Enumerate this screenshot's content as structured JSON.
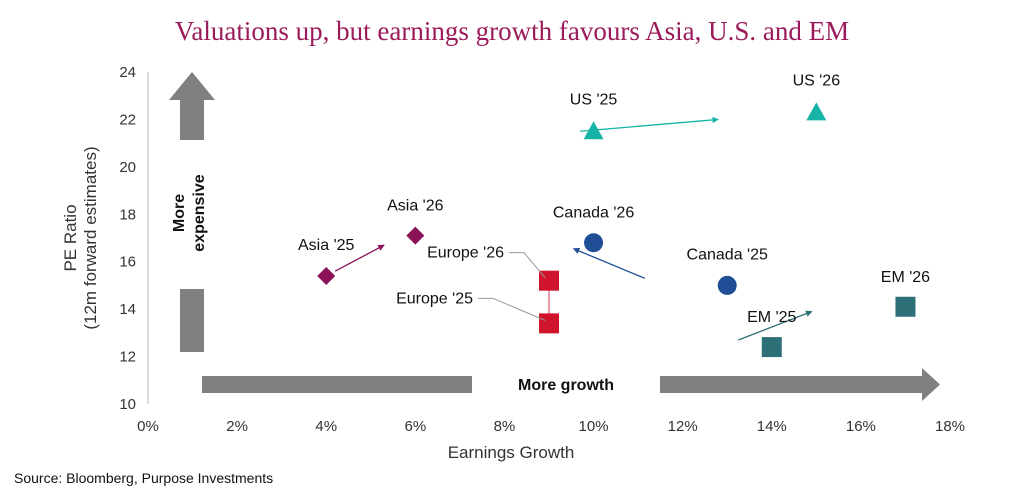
{
  "chart_data": {
    "type": "scatter",
    "title": "Valuations up, but earnings growth favours Asia, U.S. and EM",
    "xlabel": "Earnings Growth",
    "ylabel": [
      "PE Ratio",
      "(12m forward estimates)"
    ],
    "xlim": [
      0,
      18
    ],
    "ylim": [
      10,
      24
    ],
    "xticks": [
      "0%",
      "2%",
      "4%",
      "6%",
      "8%",
      "10%",
      "12%",
      "14%",
      "16%",
      "18%"
    ],
    "xtick_values": [
      0,
      2,
      4,
      6,
      8,
      10,
      12,
      14,
      16,
      18
    ],
    "yticks": [
      "10",
      "12",
      "14",
      "16",
      "18",
      "20",
      "22",
      "24"
    ],
    "ytick_values": [
      10,
      12,
      14,
      16,
      18,
      20,
      22,
      24
    ],
    "grid": false,
    "series": [
      {
        "name": "US",
        "color": "#17b3a6",
        "marker": "triangle",
        "points": [
          {
            "label": "US '25",
            "x": 10,
            "y": 21.5
          },
          {
            "label": "US '26",
            "x": 15,
            "y": 22.3
          }
        ],
        "arrow": [
          [
            9.7,
            21.5
          ],
          [
            12.8,
            22.0
          ]
        ]
      },
      {
        "name": "Asia",
        "color": "#8b1257",
        "marker": "diamond",
        "points": [
          {
            "label": "Asia '25",
            "x": 4,
            "y": 15.4
          },
          {
            "label": "Asia '26",
            "x": 6,
            "y": 17.1
          }
        ],
        "arrow": [
          [
            4.2,
            15.6
          ],
          [
            5.3,
            16.7
          ]
        ]
      },
      {
        "name": "Canada",
        "color": "#1f4e96",
        "marker": "circle",
        "points": [
          {
            "label": "Canada '25",
            "x": 13,
            "y": 15.0
          },
          {
            "label": "Canada '26",
            "x": 10,
            "y": 16.8
          }
        ],
        "arrow": [
          [
            11.15,
            15.3
          ],
          [
            9.55,
            16.55
          ]
        ]
      },
      {
        "name": "Europe",
        "color": "#d0142c",
        "marker": "square",
        "points": [
          {
            "label": "Europe '25",
            "x": 9,
            "y": 13.4
          },
          {
            "label": "Europe '26",
            "x": 9,
            "y": 15.2
          }
        ],
        "arrow": null
      },
      {
        "name": "EM",
        "color": "#2e7077",
        "marker": "square",
        "points": [
          {
            "label": "EM '25",
            "x": 14,
            "y": 12.4
          },
          {
            "label": "EM '26",
            "x": 17,
            "y": 14.1
          }
        ],
        "arrow": [
          [
            13.25,
            12.7
          ],
          [
            14.9,
            13.9
          ]
        ]
      }
    ],
    "annotations": {
      "vertical": [
        "More",
        "expensive"
      ],
      "horizontal": "More growth"
    }
  },
  "source": "Source: Bloomberg, Purpose Investments"
}
